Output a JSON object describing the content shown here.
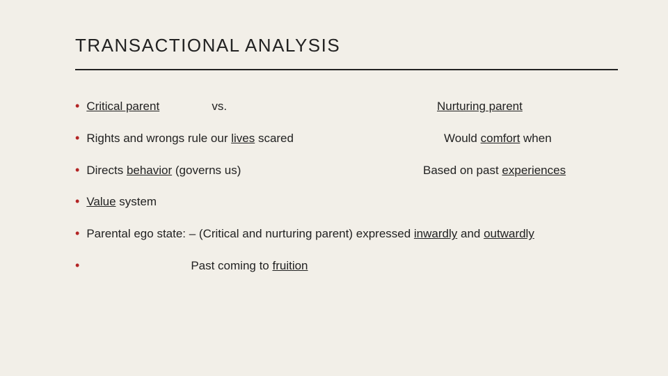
{
  "colors": {
    "background": "#f2efe8",
    "text": "#222222",
    "bullet": "#b32424",
    "underline": "#222222"
  },
  "title": "TRANSACTIONAL ANALYSIS",
  "rows": {
    "r1": {
      "left_u": "Critical parent",
      "vs": "vs.",
      "right_pre": "",
      "right_u": "Nurturing parent",
      "right_post": ""
    },
    "r2": {
      "left_pre": "Rights and wrongs rule our ",
      "left_u": "lives",
      "left_post": " scared",
      "right_pre": "Would ",
      "right_u": "comfort",
      "right_post": " when"
    },
    "r3": {
      "left_pre": "Directs ",
      "left_u": "behavior",
      "left_post": " (governs us)",
      "right_pre": "Based on past ",
      "right_u": "experiences",
      "right_post": ""
    },
    "r4": {
      "u": "Value",
      "post": " system"
    },
    "r5": {
      "pre": "Parental ego state: – (Critical and nurturing parent) expressed ",
      "u1": "inwardly",
      "mid": " and ",
      "u2": "outwardly"
    },
    "r6": {
      "pre": "Past coming to ",
      "u": "fruition"
    }
  }
}
